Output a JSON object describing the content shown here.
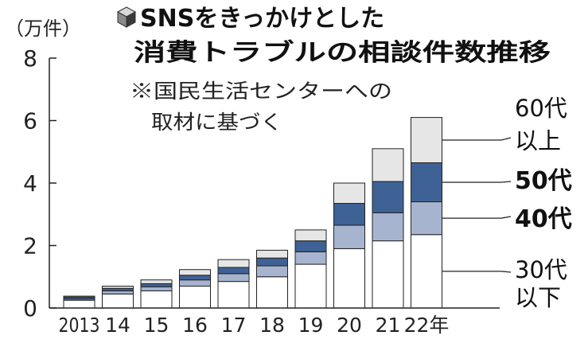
{
  "chart_data": {
    "type": "bar",
    "stacked": true,
    "title_line1": "SNSをきっかけとした",
    "title_line2": "消費トラブルの相談件数推移",
    "unit_label": "（万件）",
    "note_line1": "※国民生活センターへの",
    "note_line2": "取材に基づく",
    "categories": [
      "2013",
      "14",
      "15",
      "16",
      "17",
      "18",
      "19",
      "20",
      "21",
      "22年"
    ],
    "yticks": [
      "0",
      "2",
      "4",
      "6",
      "8"
    ],
    "ylim": [
      0,
      8
    ],
    "grid": false,
    "series": [
      {
        "name_line1": "30代",
        "name_line2": "以下",
        "color": "#ffffff",
        "values": [
          0.25,
          0.45,
          0.55,
          0.7,
          0.85,
          1.0,
          1.4,
          1.9,
          2.15,
          2.35
        ]
      },
      {
        "name_line1": "40代",
        "name_line2": "",
        "color": "#a7b4cf",
        "values": [
          0.04,
          0.1,
          0.13,
          0.2,
          0.25,
          0.35,
          0.4,
          0.75,
          0.9,
          1.05
        ]
      },
      {
        "name_line1": "50代",
        "name_line2": "",
        "color": "#3f6296",
        "values": [
          0.06,
          0.08,
          0.1,
          0.15,
          0.2,
          0.25,
          0.35,
          0.7,
          1.0,
          1.25
        ]
      },
      {
        "name_line1": "60代",
        "name_line2": "以上",
        "color": "#e6e6e6",
        "values": [
          0.03,
          0.07,
          0.12,
          0.18,
          0.25,
          0.25,
          0.35,
          0.65,
          1.05,
          1.45
        ]
      }
    ]
  }
}
